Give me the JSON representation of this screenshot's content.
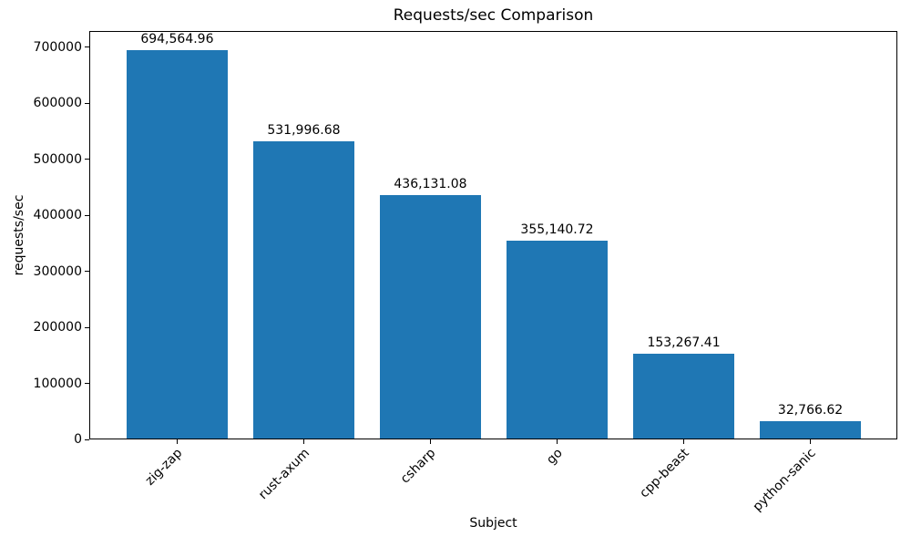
{
  "chart_data": {
    "type": "bar",
    "title": "Requests/sec Comparison",
    "xlabel": "Subject",
    "ylabel": "requests/sec",
    "categories": [
      "zig-zap",
      "rust-axum",
      "csharp",
      "go",
      "cpp-beast",
      "python-sanic"
    ],
    "values": [
      694564.96,
      531996.68,
      436131.08,
      355140.72,
      153267.41,
      32766.62
    ],
    "bar_labels": [
      "694,564.96",
      "531,996.68",
      "436,131.08",
      "355,140.72",
      "153,267.41",
      "32,766.62"
    ],
    "y_ticks": [
      0,
      100000,
      200000,
      300000,
      400000,
      500000,
      600000,
      700000
    ],
    "ylim": [
      0,
      729293
    ],
    "x_tick_rotation": 45,
    "grid": false,
    "legend": "none",
    "colors": {
      "bar": "#1f77b4",
      "text": "#000000",
      "spine": "#000000",
      "background": "#ffffff"
    }
  }
}
